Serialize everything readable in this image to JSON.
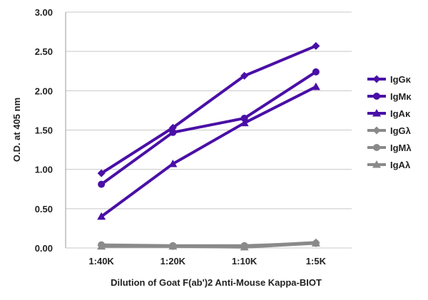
{
  "chart_data": {
    "type": "line",
    "title": "",
    "xlabel": "Dilution of Goat F(ab')2 Anti-Mouse Kappa-BIOT",
    "ylabel": "O.D. at 405 nm",
    "categories": [
      "1:40K",
      "1:20K",
      "1:10K",
      "1:5K"
    ],
    "ylim": [
      0,
      3
    ],
    "yticks": [
      0,
      0.5,
      1,
      1.5,
      2,
      2.5,
      3
    ],
    "ytick_labels": [
      "0.00",
      "0.50",
      "1.00",
      "1.50",
      "2.00",
      "2.50",
      "3.00"
    ],
    "grid": "horizontal",
    "legend_position": "right",
    "series": [
      {
        "name": "IgGκ",
        "values": [
          0.95,
          1.53,
          2.19,
          2.57
        ],
        "color": "#4a0fa6",
        "marker": "diamond"
      },
      {
        "name": "IgMκ",
        "values": [
          0.81,
          1.47,
          1.65,
          2.24
        ],
        "color": "#4a0fa6",
        "marker": "circle"
      },
      {
        "name": "IgAκ",
        "values": [
          0.4,
          1.07,
          1.59,
          2.05
        ],
        "color": "#4a0fa6",
        "marker": "triangle"
      },
      {
        "name": "IgGλ",
        "values": [
          0.03,
          0.02,
          0.02,
          0.07
        ],
        "color": "#8a8a8a",
        "marker": "diamond"
      },
      {
        "name": "IgMλ",
        "values": [
          0.04,
          0.03,
          0.03,
          0.06
        ],
        "color": "#8a8a8a",
        "marker": "circle"
      },
      {
        "name": "IgAλ",
        "values": [
          0.02,
          0.02,
          0.01,
          0.06
        ],
        "color": "#8a8a8a",
        "marker": "triangle"
      }
    ]
  }
}
